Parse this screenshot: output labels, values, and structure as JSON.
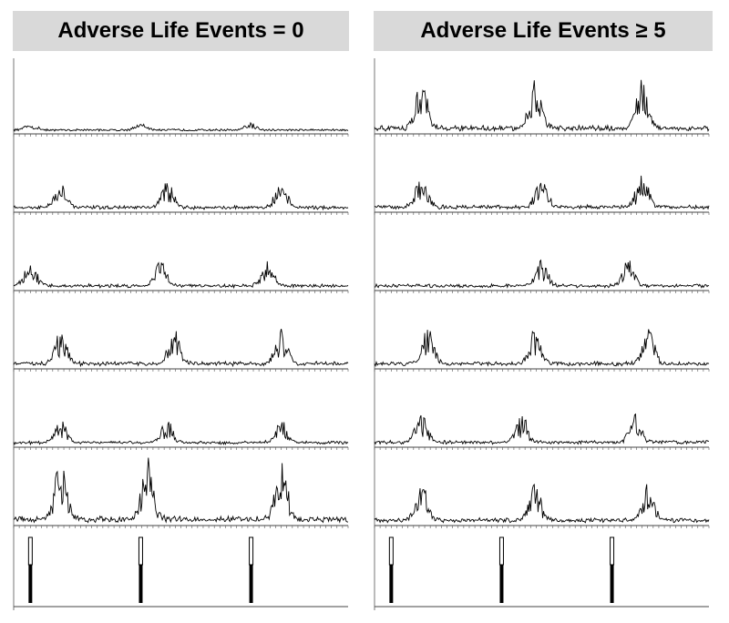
{
  "headers": [
    "Adverse Life Events = 0",
    "Adverse Life Events ≥ 5"
  ],
  "chart_data": {
    "type": "line",
    "description_of_axes": "",
    "panels": [
      {
        "column": "Adverse Life Events = 0",
        "series_count": 6,
        "stimulus_onsets_fraction": [
          0.05,
          0.38,
          0.71
        ],
        "rows": [
          {
            "row": 1,
            "peak_level": 0.1,
            "burst_positions": [
              0.05,
              0.38,
              0.71
            ]
          },
          {
            "row": 2,
            "peak_level": 0.4,
            "burst_positions": [
              0.14,
              0.46,
              0.8
            ]
          },
          {
            "row": 3,
            "peak_level": 0.4,
            "burst_positions": [
              0.05,
              0.44,
              0.76
            ]
          },
          {
            "row": 4,
            "peak_level": 0.55,
            "burst_positions": [
              0.14,
              0.48,
              0.8
            ]
          },
          {
            "row": 5,
            "peak_level": 0.35,
            "burst_positions": [
              0.14,
              0.46,
              0.8
            ]
          },
          {
            "row": 6,
            "peak_level": 0.95,
            "burst_positions": [
              0.14,
              0.4,
              0.8
            ]
          }
        ]
      },
      {
        "column": "Adverse Life Events ≥ 5",
        "series_count": 6,
        "stimulus_onsets_fraction": [
          0.05,
          0.38,
          0.71
        ],
        "rows": [
          {
            "row": 1,
            "peak_level": 0.75,
            "burst_positions": [
              0.14,
              0.48,
              0.8
            ]
          },
          {
            "row": 2,
            "peak_level": 0.55,
            "burst_positions": [
              0.14,
              0.5,
              0.8
            ]
          },
          {
            "row": 3,
            "peak_level": 0.4,
            "burst_positions": [
              0.5,
              0.76
            ]
          },
          {
            "row": 4,
            "peak_level": 0.55,
            "burst_positions": [
              0.16,
              0.48,
              0.82
            ]
          },
          {
            "row": 5,
            "peak_level": 0.45,
            "burst_positions": [
              0.14,
              0.44,
              0.78
            ]
          },
          {
            "row": 6,
            "peak_level": 0.6,
            "burst_positions": [
              0.14,
              0.48,
              0.82
            ]
          }
        ]
      }
    ]
  }
}
